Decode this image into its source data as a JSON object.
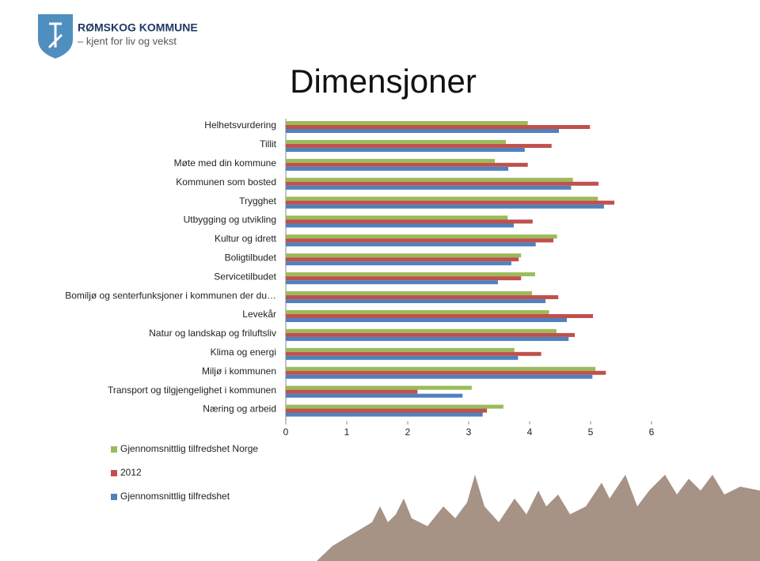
{
  "header": {
    "org": "RØMSKOG KOMMUNE",
    "tagline": "– kjent for liv og vekst"
  },
  "chart_data": {
    "type": "hbar",
    "title": "Dimensjoner",
    "categories": [
      "Helhetsvurdering",
      "Tillit",
      "Møte med din kommune",
      "Kommunen som bosted",
      "Trygghet",
      "Utbygging og utvikling",
      "Kultur og idrett",
      "Boligtilbudet",
      "Servicetilbudet",
      "Bomiljø og senterfunksjoner i kommunen der du…",
      "Levekår",
      "Natur og landskap og friluftsliv",
      "Klima og energi",
      "Miljø i kommunen",
      "Transport og tilgjengelighet i kommunen",
      "Næring og arbeid"
    ],
    "series": [
      {
        "name": "Gjennomsnittlig tilfredshet Norge",
        "color": "#9bbb59",
        "values": [
          3.97,
          3.61,
          3.43,
          4.71,
          5.12,
          3.64,
          4.45,
          3.86,
          4.09,
          4.04,
          4.32,
          4.44,
          3.75,
          5.08,
          3.05,
          3.57
        ]
      },
      {
        "name": "2012",
        "color": "#c0504d",
        "values": [
          4.99,
          4.36,
          3.97,
          5.13,
          5.39,
          4.05,
          4.39,
          3.82,
          3.86,
          4.47,
          5.04,
          4.74,
          4.19,
          5.25,
          2.16,
          3.3
        ]
      },
      {
        "name": "Gjennomsnittlig tilfredshet",
        "color": "#4f81bd",
        "values": [
          4.48,
          3.92,
          3.65,
          4.68,
          5.22,
          3.74,
          4.1,
          3.7,
          3.48,
          4.26,
          4.61,
          4.64,
          3.81,
          5.03,
          2.9,
          3.23
        ]
      }
    ],
    "xlim": [
      0,
      6
    ],
    "xticks": [
      0,
      1,
      2,
      3,
      4,
      5,
      6
    ],
    "legend": "bottom-left"
  }
}
